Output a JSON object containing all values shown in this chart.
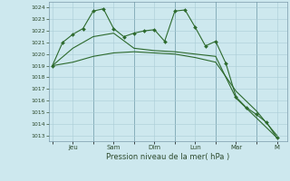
{
  "background_color": "#cde8ee",
  "grid_color": "#aacdd6",
  "line_color": "#2d6a2d",
  "marker_color": "#2d6a2d",
  "xlabel": "Pression niveau de la mer( hPa )",
  "ylim": [
    1012.5,
    1024.5
  ],
  "yticks": [
    1013,
    1014,
    1015,
    1016,
    1017,
    1018,
    1019,
    1020,
    1021,
    1022,
    1023,
    1024
  ],
  "xtick_labels": [
    "",
    "Jeu",
    "",
    "Sam",
    "",
    "Dim",
    "",
    "Lun",
    "",
    "Mar",
    "",
    "M"
  ],
  "xtick_positions": [
    0,
    2,
    4,
    6,
    8,
    10,
    12,
    14,
    16,
    18,
    20,
    22
  ],
  "xlim": [
    -0.3,
    23.0
  ],
  "line1_x": [
    0,
    1,
    2,
    3,
    4,
    5,
    6,
    7,
    8,
    9,
    10,
    11,
    12,
    13,
    14,
    15,
    16,
    17,
    18,
    19,
    20,
    21,
    22
  ],
  "line1_y": [
    1019.0,
    1021.0,
    1021.7,
    1022.2,
    1023.7,
    1023.9,
    1022.2,
    1021.5,
    1021.8,
    1022.0,
    1022.1,
    1021.1,
    1023.7,
    1023.8,
    1022.3,
    1020.7,
    1021.1,
    1019.2,
    1016.3,
    1015.4,
    1014.8,
    1014.1,
    1012.8
  ],
  "line2_x": [
    0,
    2,
    4,
    6,
    8,
    10,
    12,
    14,
    16,
    18,
    20,
    22
  ],
  "line2_y": [
    1019.0,
    1019.3,
    1019.8,
    1020.1,
    1020.2,
    1020.1,
    1020.0,
    1019.7,
    1019.3,
    1016.8,
    1015.1,
    1013.0
  ],
  "line3_x": [
    0,
    2,
    4,
    6,
    8,
    10,
    12,
    14,
    16,
    18,
    20,
    22
  ],
  "line3_y": [
    1019.0,
    1020.5,
    1021.5,
    1021.8,
    1020.5,
    1020.3,
    1020.2,
    1020.0,
    1019.8,
    1016.2,
    1014.5,
    1012.8
  ],
  "vlines": [
    4,
    8,
    12,
    16,
    20
  ],
  "vline_color": "#4a7a8a"
}
